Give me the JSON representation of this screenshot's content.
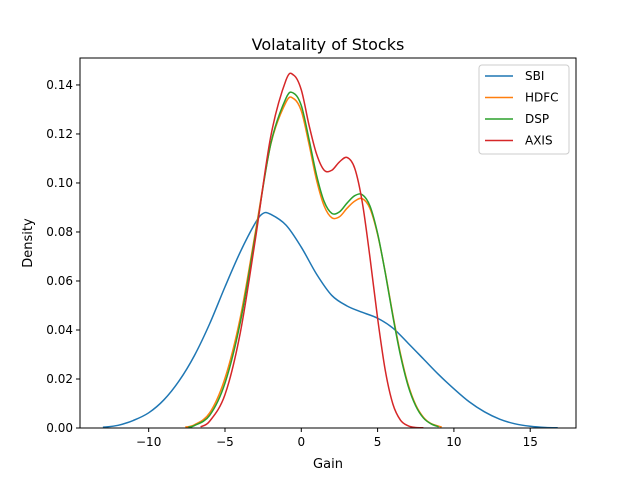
{
  "chart_data": {
    "type": "line",
    "title": "Volatality of Stocks",
    "xlabel": "Gain",
    "ylabel": "Density",
    "xlim": [
      -14.5,
      18.0
    ],
    "ylim": [
      0.0,
      0.151
    ],
    "xticks": [
      -10,
      -5,
      0,
      5,
      10,
      15
    ],
    "xtick_labels": [
      "−10",
      "−5",
      "0",
      "5",
      "10",
      "15"
    ],
    "yticks": [
      0.0,
      0.02,
      0.04,
      0.06,
      0.08,
      0.1,
      0.12,
      0.14
    ],
    "ytick_labels": [
      "0.00",
      "0.02",
      "0.04",
      "0.06",
      "0.08",
      "0.10",
      "0.12",
      "0.14"
    ],
    "grid": false,
    "legend_position": "top-right",
    "series": [
      {
        "name": "SBI",
        "color": "#1f77b4",
        "x": [
          -13.0,
          -12.0,
          -11.0,
          -10.0,
          -9.0,
          -8.0,
          -7.0,
          -6.0,
          -5.0,
          -4.0,
          -3.0,
          -2.5,
          -2.0,
          -1.0,
          0.0,
          1.0,
          2.0,
          3.0,
          4.0,
          5.0,
          6.0,
          7.0,
          8.0,
          9.0,
          10.0,
          11.0,
          12.0,
          13.0,
          14.0,
          15.0,
          16.0,
          16.8
        ],
        "y": [
          0.0003,
          0.0011,
          0.0031,
          0.0062,
          0.0115,
          0.0193,
          0.0296,
          0.0426,
          0.0576,
          0.0718,
          0.0838,
          0.0876,
          0.0872,
          0.0828,
          0.0738,
          0.0628,
          0.0541,
          0.0498,
          0.0472,
          0.0448,
          0.0408,
          0.0346,
          0.0282,
          0.0218,
          0.016,
          0.0107,
          0.0066,
          0.0036,
          0.0017,
          0.0007,
          0.0002,
          0.0001
        ]
      },
      {
        "name": "HDFC",
        "color": "#ff7f0e",
        "x": [
          -7.6,
          -7.0,
          -6.0,
          -5.0,
          -4.0,
          -3.0,
          -2.0,
          -1.0,
          -0.5,
          0.0,
          0.5,
          1.0,
          1.5,
          2.0,
          2.5,
          3.0,
          3.5,
          4.0,
          4.5,
          5.0,
          5.5,
          6.0,
          6.5,
          7.0,
          7.5,
          8.0,
          8.5,
          9.2
        ],
        "y": [
          0.0004,
          0.0013,
          0.0062,
          0.0203,
          0.045,
          0.0802,
          0.1158,
          0.133,
          0.1344,
          0.1294,
          0.116,
          0.1012,
          0.0906,
          0.0858,
          0.0862,
          0.0897,
          0.0926,
          0.0936,
          0.0896,
          0.079,
          0.0636,
          0.0462,
          0.0303,
          0.0178,
          0.0094,
          0.0044,
          0.0018,
          0.0004
        ]
      },
      {
        "name": "DSP",
        "color": "#2ca02c",
        "x": [
          -7.4,
          -7.0,
          -6.0,
          -5.0,
          -4.0,
          -3.0,
          -2.0,
          -1.0,
          -0.5,
          0.0,
          0.5,
          1.0,
          1.5,
          2.0,
          2.5,
          3.0,
          3.5,
          4.0,
          4.5,
          5.0,
          5.5,
          6.0,
          6.5,
          7.0,
          7.5,
          8.0,
          8.5,
          9.0
        ],
        "y": [
          0.0004,
          0.001,
          0.0052,
          0.0183,
          0.043,
          0.079,
          0.116,
          0.1346,
          0.1366,
          0.1316,
          0.118,
          0.1032,
          0.0924,
          0.0876,
          0.0882,
          0.0918,
          0.0948,
          0.0952,
          0.0906,
          0.0794,
          0.0634,
          0.0456,
          0.0296,
          0.0172,
          0.009,
          0.0041,
          0.0017,
          0.0005
        ]
      },
      {
        "name": "AXIS",
        "color": "#d62728",
        "x": [
          -6.6,
          -6.0,
          -5.0,
          -4.0,
          -3.0,
          -2.0,
          -1.0,
          -0.5,
          0.0,
          0.5,
          1.0,
          1.5,
          2.0,
          2.5,
          3.0,
          3.5,
          4.0,
          4.5,
          5.0,
          5.5,
          6.0,
          6.5,
          7.0,
          7.5,
          8.0
        ],
        "y": [
          0.0005,
          0.0028,
          0.0136,
          0.0388,
          0.0774,
          0.119,
          0.142,
          0.144,
          0.138,
          0.1238,
          0.1118,
          0.1052,
          0.1052,
          0.1086,
          0.1104,
          0.106,
          0.092,
          0.0696,
          0.0448,
          0.0236,
          0.0098,
          0.0032,
          0.0009,
          0.0002,
          0.0001
        ]
      }
    ]
  }
}
